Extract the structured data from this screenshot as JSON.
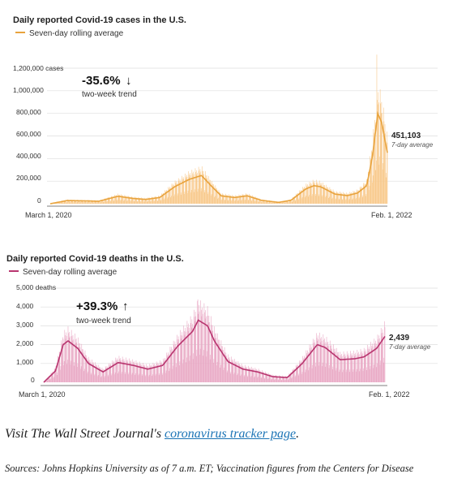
{
  "chart_data": [
    {
      "type": "bar",
      "title": "Daily reported Covid-19 cases in the U.S.",
      "legend_label": "Seven-day rolling average",
      "legend_position": "top-left",
      "line_color": "#e8a33d",
      "bar_color": "#f8c98b",
      "ylim": [
        0,
        1200000
      ],
      "y_ticks": [
        "1,200,000 cases",
        "1,000,000",
        "800,000",
        "600,000",
        "400,000",
        "200,000",
        "0"
      ],
      "x_ticks": [
        "March 1, 2020",
        "Feb. 1, 2022"
      ],
      "trend_value": "-35.6%",
      "trend_arrow": "↓",
      "trend_label": "two-week trend",
      "end_value": "451,103",
      "end_label": "7-day average",
      "rolling_average_points": [
        [
          "2020-03-01",
          0
        ],
        [
          "2020-04-05",
          28000
        ],
        [
          "2020-05-15",
          25000
        ],
        [
          "2020-06-10",
          22000
        ],
        [
          "2020-07-20",
          66000
        ],
        [
          "2020-08-20",
          47000
        ],
        [
          "2020-09-15",
          38000
        ],
        [
          "2020-10-15",
          55000
        ],
        [
          "2020-11-15",
          150000
        ],
        [
          "2020-12-15",
          215000
        ],
        [
          "2021-01-10",
          250000
        ],
        [
          "2021-02-01",
          150000
        ],
        [
          "2021-02-20",
          70000
        ],
        [
          "2021-03-20",
          55000
        ],
        [
          "2021-04-15",
          70000
        ],
        [
          "2021-05-15",
          30000
        ],
        [
          "2021-06-20",
          12000
        ],
        [
          "2021-07-15",
          30000
        ],
        [
          "2021-08-15",
          130000
        ],
        [
          "2021-09-01",
          160000
        ],
        [
          "2021-09-15",
          150000
        ],
        [
          "2021-10-15",
          85000
        ],
        [
          "2021-11-10",
          72000
        ],
        [
          "2021-12-01",
          95000
        ],
        [
          "2021-12-20",
          160000
        ],
        [
          "2022-01-01",
          420000
        ],
        [
          "2022-01-12",
          800000
        ],
        [
          "2022-01-20",
          720000
        ],
        [
          "2022-02-01",
          451103
        ]
      ],
      "peak_daily_bar": [
        "2022-01-10",
        1350000
      ]
    },
    {
      "type": "bar",
      "title": "Daily reported Covid-19 deaths in the U.S.",
      "legend_label": "Seven-day rolling average",
      "legend_position": "top-left",
      "line_color": "#b8356f",
      "bar_color": "#e9a9c5",
      "ylim": [
        0,
        5000
      ],
      "y_ticks": [
        "5,000 deaths",
        "4,000",
        "3,000",
        "2,000",
        "1,000",
        "0"
      ],
      "x_ticks": [
        "March 1, 2020",
        "Feb. 1, 2022"
      ],
      "trend_value": "+39.3%",
      "trend_arrow": "↑",
      "trend_label": "two-week trend",
      "end_value": "2,439",
      "end_label": "7-day average",
      "rolling_average_points": [
        [
          "2020-03-01",
          0
        ],
        [
          "2020-03-25",
          600
        ],
        [
          "2020-04-10",
          2000
        ],
        [
          "2020-04-20",
          2200
        ],
        [
          "2020-05-10",
          1800
        ],
        [
          "2020-06-01",
          1000
        ],
        [
          "2020-07-01",
          550
        ],
        [
          "2020-08-01",
          1050
        ],
        [
          "2020-09-01",
          900
        ],
        [
          "2020-10-01",
          700
        ],
        [
          "2020-11-01",
          900
        ],
        [
          "2020-12-01",
          1900
        ],
        [
          "2021-01-01",
          2700
        ],
        [
          "2021-01-13",
          3300
        ],
        [
          "2021-02-01",
          3000
        ],
        [
          "2021-02-15",
          2200
        ],
        [
          "2021-03-15",
          1100
        ],
        [
          "2021-04-15",
          700
        ],
        [
          "2021-05-15",
          550
        ],
        [
          "2021-06-15",
          300
        ],
        [
          "2021-07-15",
          250
        ],
        [
          "2021-08-15",
          1000
        ],
        [
          "2021-09-15",
          2000
        ],
        [
          "2021-10-01",
          1850
        ],
        [
          "2021-11-01",
          1200
        ],
        [
          "2021-12-01",
          1250
        ],
        [
          "2021-12-20",
          1350
        ],
        [
          "2022-01-15",
          1800
        ],
        [
          "2022-02-01",
          2439
        ]
      ],
      "peak_daily_bar": [
        "2021-01-12",
        4400
      ]
    }
  ],
  "footer": {
    "visit_prefix": "Visit The Wall Street Journal's",
    "visit_link": "coronavirus tracker page",
    "visit_suffix": ".",
    "sources": "Sources: Johns Hopkins University as of 7 a.m. ET; Vaccination figures from the Centers for Disease"
  }
}
